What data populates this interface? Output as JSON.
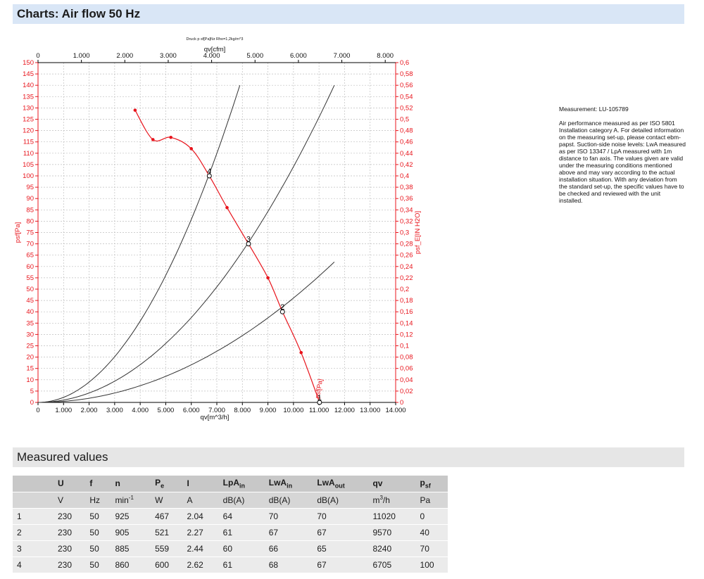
{
  "header": {
    "charts_title": "Charts: Air flow 50 Hz",
    "measured_title": "Measured values"
  },
  "measurement": {
    "id_text": "Measurement: LU-105789",
    "description": "Air performance measured as per ISO 5801 Installation category A. For detailed information on the measuring set-up, please contact ebm-papst. Suction-side noise levels: LwA measured as per ISO 13347 / LpA measured with 1m distance to fan axis. The values given are valid under the measuring conditions mentioned above and may vary according to the actual installation situation. With any deviation from the standard set-up, the specific values have to be checked and reviewed with the unit installed."
  },
  "chart_data": {
    "type": "line",
    "top_note": "Druck p sf[Pa]für Rho=1,2kg/m^3",
    "xlabel": "qv[m^3/h]",
    "x2label": "qv[cfm]",
    "ylabel": "psf[Pa]",
    "y2label": "psf_E[IN H2O]",
    "xlim": [
      0,
      14000
    ],
    "ylim": [
      0,
      150
    ],
    "x2lim": [
      0,
      8000
    ],
    "y2lim": [
      0,
      0.6
    ],
    "x_ticks": [
      "0",
      "1.000",
      "2.000",
      "3.000",
      "4.000",
      "5.000",
      "6.000",
      "7.000",
      "8.000",
      "9.000",
      "10.000",
      "11.000",
      "12.000",
      "13.000",
      "14.000"
    ],
    "x2_ticks": [
      "0",
      "1.000",
      "2.000",
      "3.000",
      "4.000",
      "5.000",
      "6.000",
      "7.000",
      "8.000"
    ],
    "y_ticks": [
      "0",
      "5",
      "10",
      "15",
      "20",
      "25",
      "30",
      "35",
      "40",
      "45",
      "50",
      "55",
      "60",
      "65",
      "70",
      "75",
      "80",
      "85",
      "90",
      "95",
      "100",
      "105",
      "110",
      "115",
      "120",
      "125",
      "130",
      "135",
      "140",
      "145",
      "150"
    ],
    "y2_ticks": [
      "0",
      "0,02",
      "0,04",
      "0,06",
      "0,08",
      "0,1",
      "0,12",
      "0,14",
      "0,16",
      "0,18",
      "0,2",
      "0,22",
      "0,24",
      "0,26",
      "0,28",
      "0,3",
      "0,32",
      "0,34",
      "0,36",
      "0,38",
      "0,4",
      "0,42",
      "0,44",
      "0,46",
      "0,48",
      "0,5",
      "0,52",
      "0,54",
      "0,56",
      "0,58",
      "0,6"
    ],
    "grid": true,
    "curve_label": "psf[Pa]",
    "colors": {
      "curve": "#e8141c",
      "system": "#333333",
      "grid": "#bfbfbf"
    },
    "fan_curve": {
      "x": [
        3800,
        4500,
        5200,
        6000,
        6705,
        7400,
        8240,
        9000,
        9570,
        10300,
        11020
      ],
      "y": [
        129,
        116,
        117,
        112,
        100,
        86,
        70,
        55,
        40,
        22,
        0
      ]
    },
    "system_curves": [
      {
        "x_end": 7900,
        "y_end": 140
      },
      {
        "x_end": 11600,
        "y_end": 140
      },
      {
        "x_end": 11600,
        "y_end": 62
      }
    ],
    "operating_points": [
      {
        "label": "1",
        "x": 11020,
        "y": 0
      },
      {
        "label": "2",
        "x": 9570,
        "y": 40
      },
      {
        "label": "3",
        "x": 8240,
        "y": 70
      },
      {
        "label": "4",
        "x": 6705,
        "y": 100
      }
    ]
  },
  "table": {
    "headers": [
      "",
      "U",
      "f",
      "n",
      "P",
      "I",
      "LpA",
      "LwA",
      "LwA",
      "qv",
      "p"
    ],
    "header_subs": [
      "",
      "",
      "",
      "",
      "e",
      "",
      "in",
      "in",
      "out",
      "",
      "sf"
    ],
    "units": [
      "",
      "V",
      "Hz",
      "min",
      "W",
      "A",
      "dB(A)",
      "dB(A)",
      "dB(A)",
      "m",
      "Pa"
    ],
    "unit_sups": [
      "",
      "",
      "",
      "-1",
      "",
      "",
      "",
      "",
      "",
      "3",
      ""
    ],
    "unit_suffix": [
      "",
      "",
      "",
      "",
      "",
      "",
      "",
      "",
      "",
      "/h",
      ""
    ],
    "rows": [
      [
        "1",
        "230",
        "50",
        "925",
        "467",
        "2.04",
        "64",
        "70",
        "70",
        "11020",
        "0"
      ],
      [
        "2",
        "230",
        "50",
        "905",
        "521",
        "2.27",
        "61",
        "67",
        "67",
        "9570",
        "40"
      ],
      [
        "3",
        "230",
        "50",
        "885",
        "559",
        "2.44",
        "60",
        "66",
        "65",
        "8240",
        "70"
      ],
      [
        "4",
        "230",
        "50",
        "860",
        "600",
        "2.62",
        "61",
        "68",
        "67",
        "6705",
        "100"
      ]
    ]
  }
}
